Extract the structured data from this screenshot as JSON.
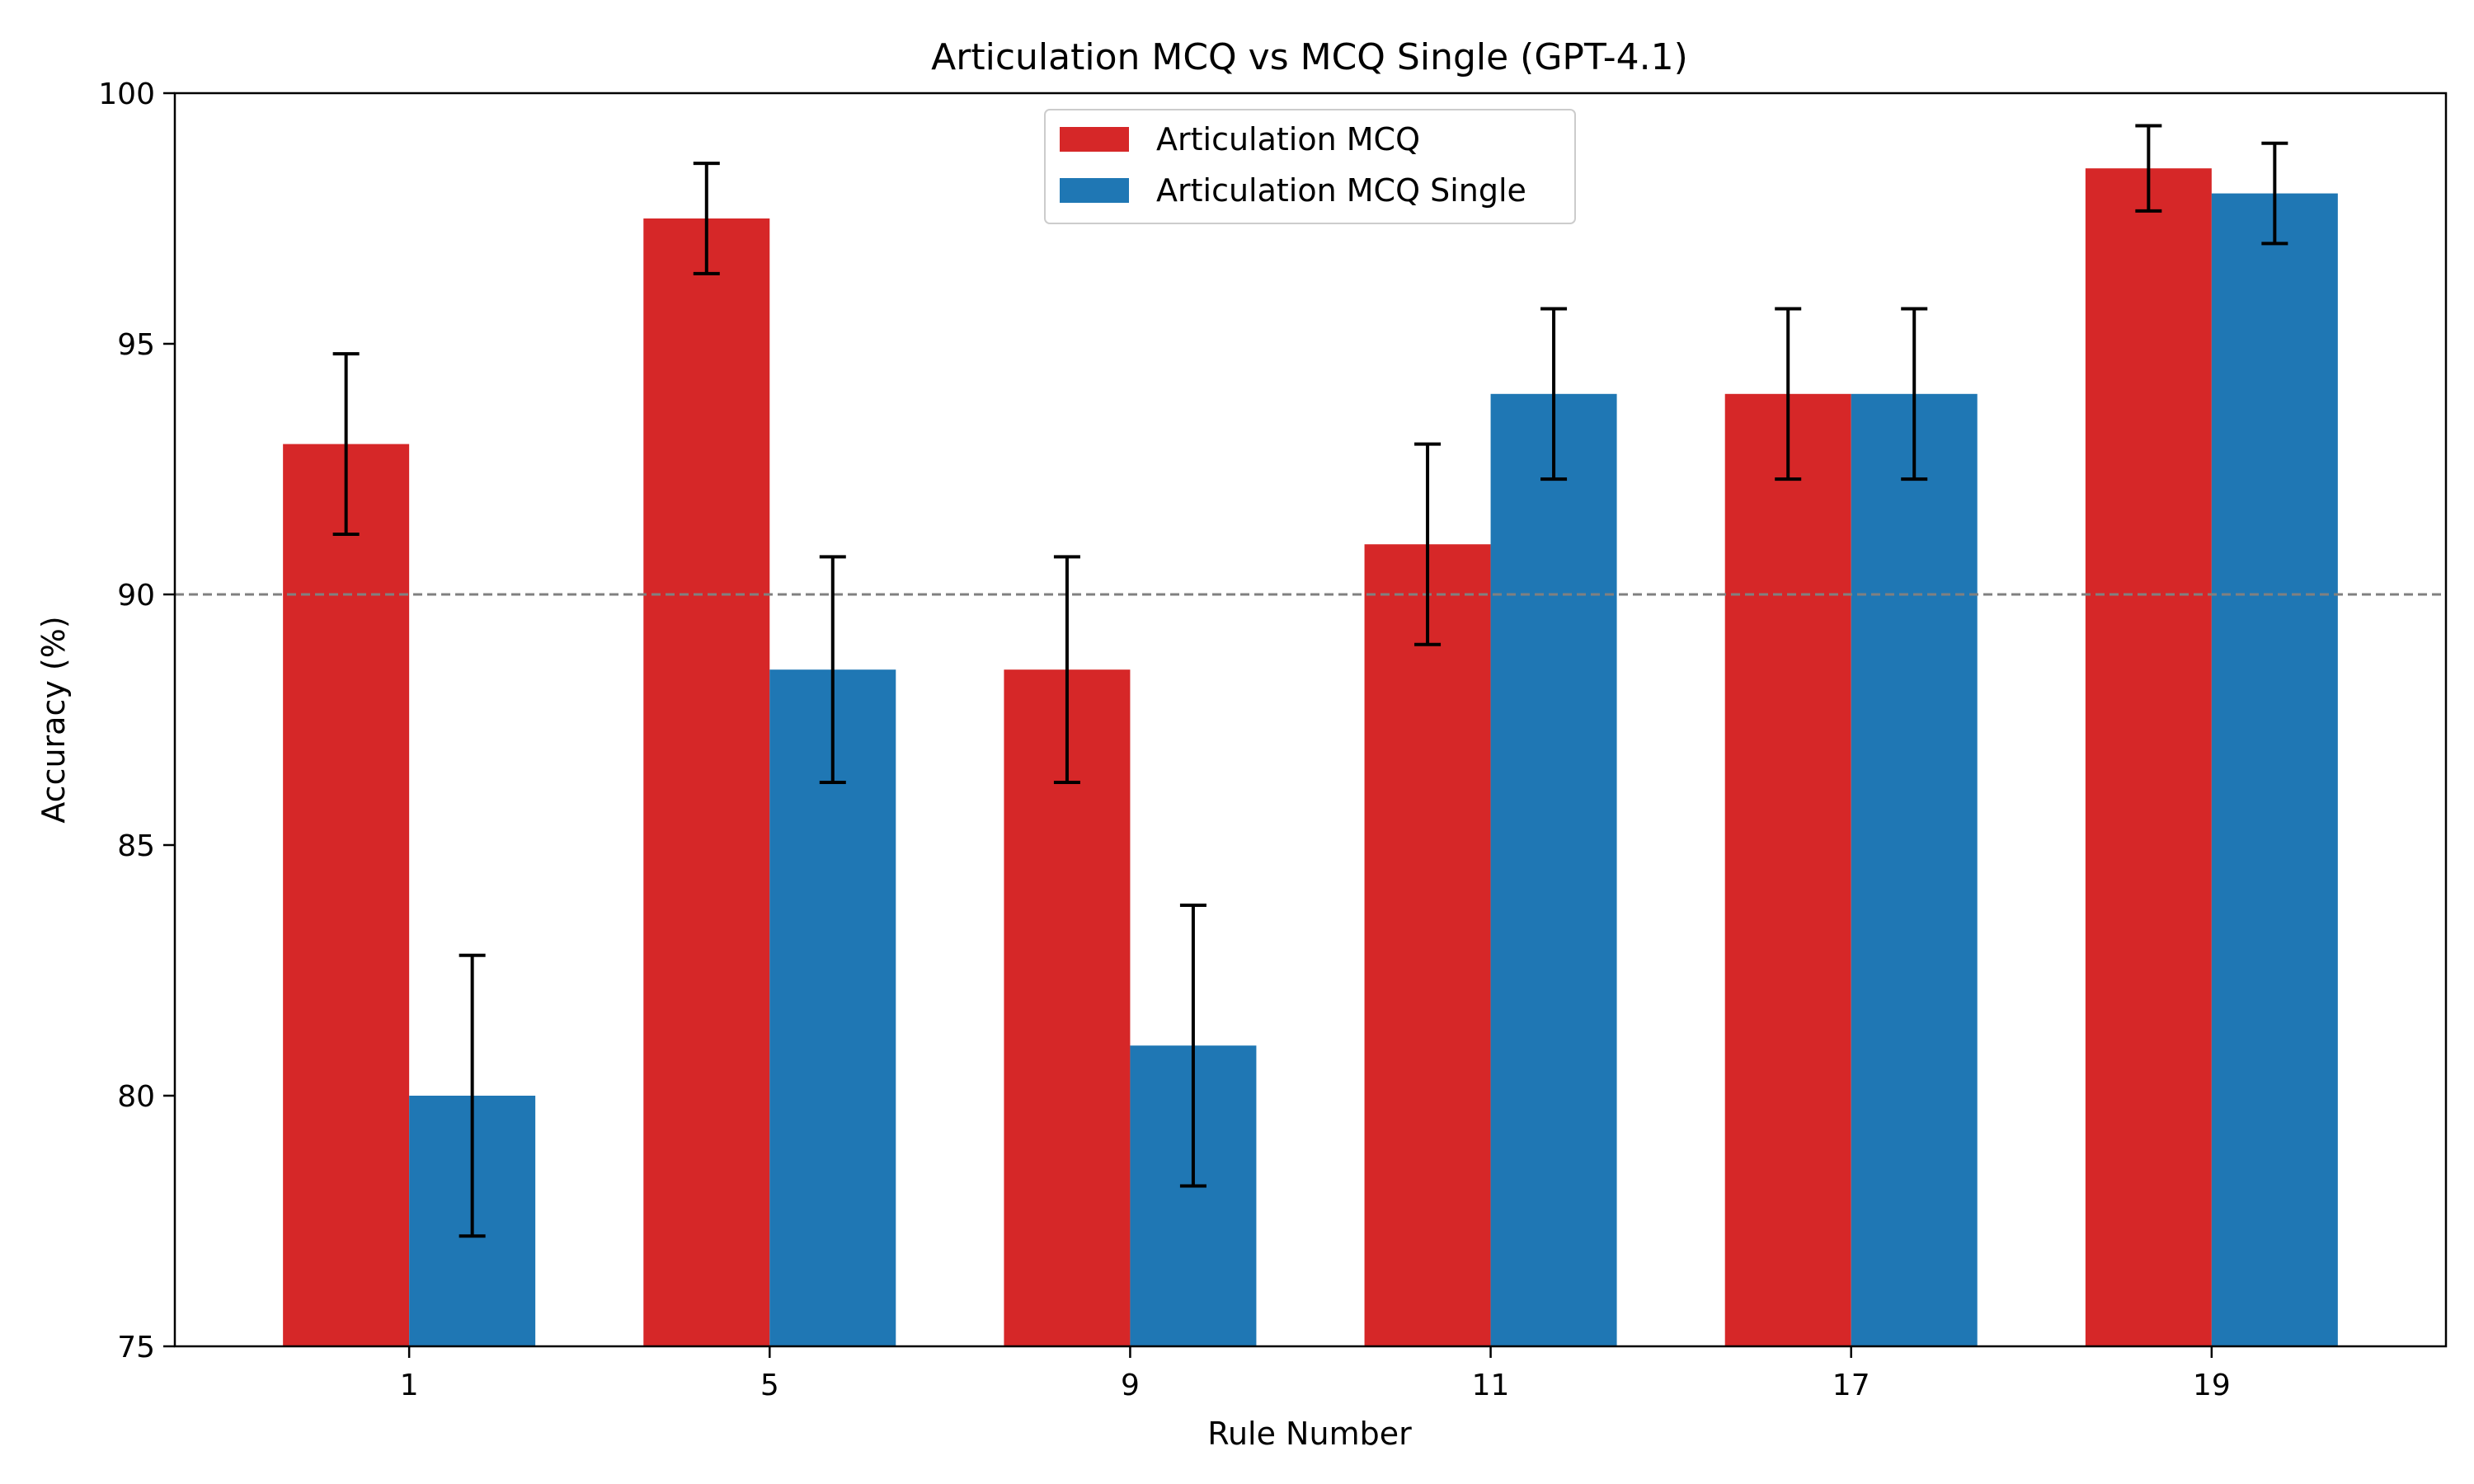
{
  "chart_data": {
    "type": "bar",
    "title": "Articulation MCQ vs MCQ Single (GPT-4.1)",
    "xlabel": "Rule Number",
    "ylabel": "Accuracy (%)",
    "categories": [
      "1",
      "5",
      "9",
      "11",
      "17",
      "19"
    ],
    "ylim": [
      75,
      100
    ],
    "yticks": [
      75,
      80,
      85,
      90,
      95,
      100
    ],
    "reference_line": {
      "y": 90,
      "style": "dashed",
      "color": "#808080"
    },
    "grid": false,
    "legend_position": "top-center",
    "series": [
      {
        "name": "Articulation MCQ",
        "color": "#d62728",
        "values": [
          93.0,
          97.5,
          88.5,
          91.0,
          94.0,
          98.5
        ],
        "errors": [
          1.8,
          1.1,
          2.25,
          2.0,
          1.7,
          0.85
        ]
      },
      {
        "name": "Articulation MCQ Single",
        "color": "#1f77b4",
        "values": [
          80.0,
          88.5,
          81.0,
          94.0,
          94.0,
          98.0
        ],
        "errors": [
          2.8,
          2.25,
          2.8,
          1.7,
          1.7,
          1.0
        ]
      }
    ]
  }
}
